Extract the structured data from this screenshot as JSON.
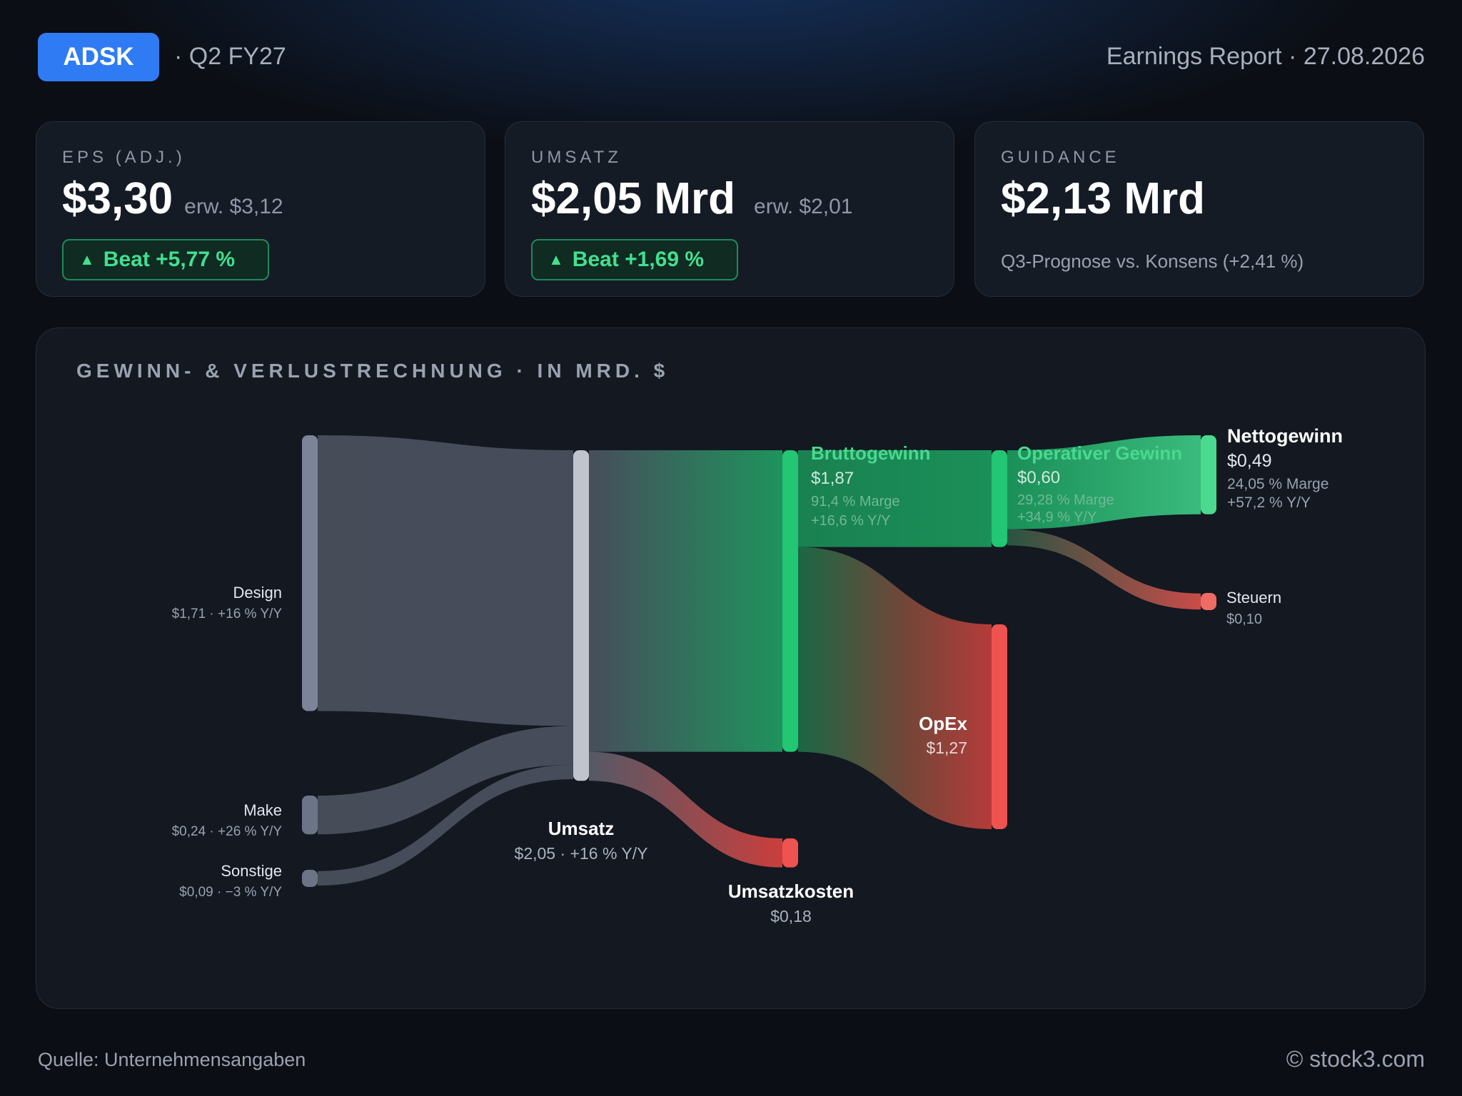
{
  "header": {
    "ticker": "ADSK",
    "period": "· Q2 FY27",
    "report": "Earnings Report · 27.08.2026"
  },
  "cards": {
    "eps": {
      "label": "EPS (ADJ.)",
      "value": "$3,30",
      "estimate": "erw. $3,12",
      "badge": "Beat +5,77 %"
    },
    "revenue": {
      "label": "UMSATZ",
      "value": "$2,05 Mrd",
      "estimate": "erw. $2,01",
      "badge": "Beat +1,69 %"
    },
    "guidance": {
      "label": "GUIDANCE",
      "value": "$2,13 Mrd",
      "note": "Q3-Prognose vs. Konsens (+2,41 %)"
    }
  },
  "panel_title": "GEWINN- & VERLUSTRECHNUNG · IN MRD. $",
  "colors": {
    "accent": "#2f7bf4",
    "positive": "#22c673",
    "negative": "#ef5350",
    "neutral": "#6b7587"
  },
  "chart_data": {
    "type": "sankey",
    "title": "GEWINN- & VERLUSTRECHNUNG · IN MRD. $",
    "unit": "Mrd. $",
    "nodes": [
      {
        "id": "design",
        "name": "Design",
        "value": 1.71,
        "sub": "$1,71 · +16 % Y/Y"
      },
      {
        "id": "make",
        "name": "Make",
        "value": 0.24,
        "sub": "$0,24 · +26 % Y/Y"
      },
      {
        "id": "other",
        "name": "Sonstige",
        "value": 0.09,
        "sub": "$0,09 · −3 % Y/Y"
      },
      {
        "id": "revenue",
        "name": "Umsatz",
        "value": 2.05,
        "sub": "$2,05 · +16 % Y/Y"
      },
      {
        "id": "gross",
        "name": "Bruttogewinn",
        "value": 1.87,
        "sub": "$1,87",
        "margin": "91,4 % Marge",
        "yoy": "+16,6 % Y/Y"
      },
      {
        "id": "cogs",
        "name": "Umsatzkosten",
        "value": 0.18,
        "sub": "$0,18"
      },
      {
        "id": "opinc",
        "name": "Operativer Gewinn",
        "value": 0.6,
        "sub": "$0,60",
        "margin": "29,28 % Marge",
        "yoy": "+34,9 % Y/Y"
      },
      {
        "id": "opex",
        "name": "OpEx",
        "value": 1.27,
        "sub": "$1,27"
      },
      {
        "id": "net",
        "name": "Nettogewinn",
        "value": 0.49,
        "sub": "$0,49",
        "margin": "24,05 % Marge",
        "yoy": "+57,2 % Y/Y"
      },
      {
        "id": "tax",
        "name": "Steuern",
        "value": 0.1,
        "sub": "$0,10"
      }
    ],
    "links": [
      {
        "source": "design",
        "target": "revenue",
        "value": 1.71
      },
      {
        "source": "make",
        "target": "revenue",
        "value": 0.24
      },
      {
        "source": "other",
        "target": "revenue",
        "value": 0.09
      },
      {
        "source": "revenue",
        "target": "gross",
        "value": 1.87
      },
      {
        "source": "revenue",
        "target": "cogs",
        "value": 0.18
      },
      {
        "source": "gross",
        "target": "opinc",
        "value": 0.6
      },
      {
        "source": "gross",
        "target": "opex",
        "value": 1.27
      },
      {
        "source": "opinc",
        "target": "net",
        "value": 0.49
      },
      {
        "source": "opinc",
        "target": "tax",
        "value": 0.1
      }
    ]
  },
  "footer": {
    "source": "Quelle: Unternehmensangaben",
    "copyright": "© stock3.com"
  }
}
